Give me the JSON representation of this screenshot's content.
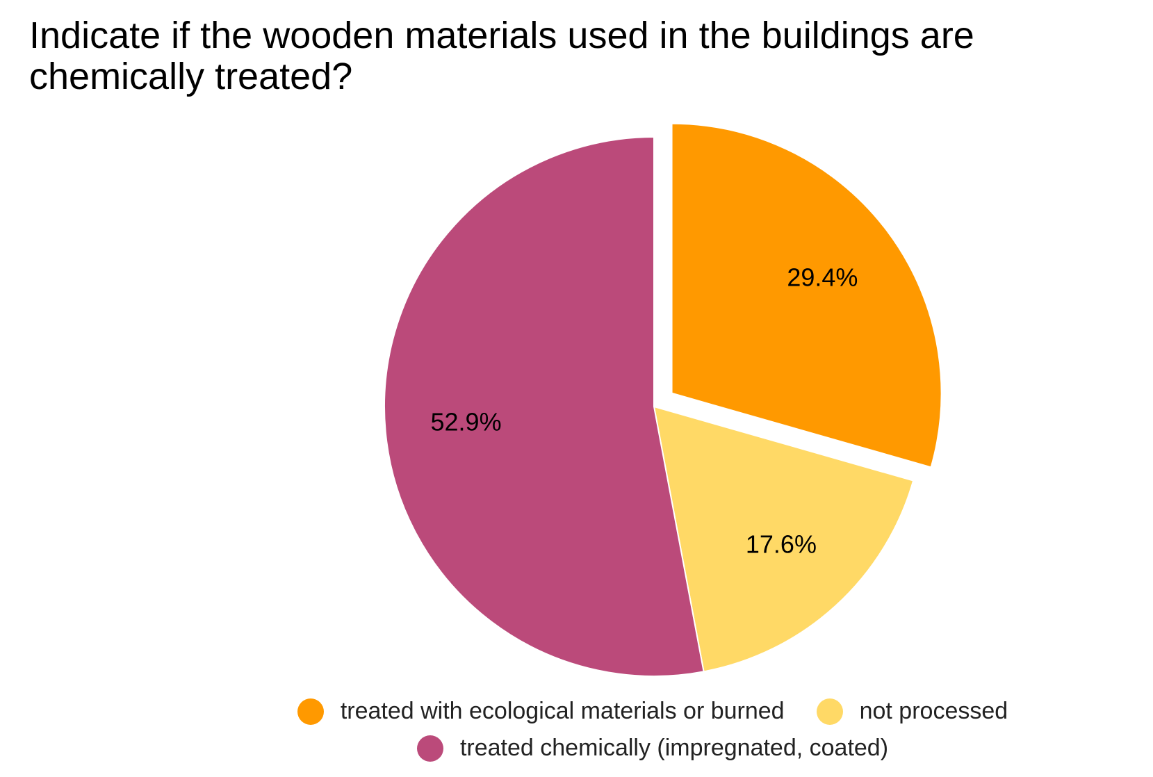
{
  "chart_data": {
    "type": "pie",
    "title": "Indicate if the wooden materials used in the buildings are chemically treated?",
    "categories": [
      "treated with ecological materials or burned",
      "not processed",
      "treated chemically (impregnated, coated)"
    ],
    "values": [
      29.4,
      17.6,
      52.9
    ],
    "value_labels": [
      "29.4%",
      "17.6%",
      "52.9%"
    ],
    "colors": [
      "#ff9900",
      "#ffd966",
      "#bb4a7a"
    ],
    "exploded": [
      true,
      false,
      false
    ]
  }
}
